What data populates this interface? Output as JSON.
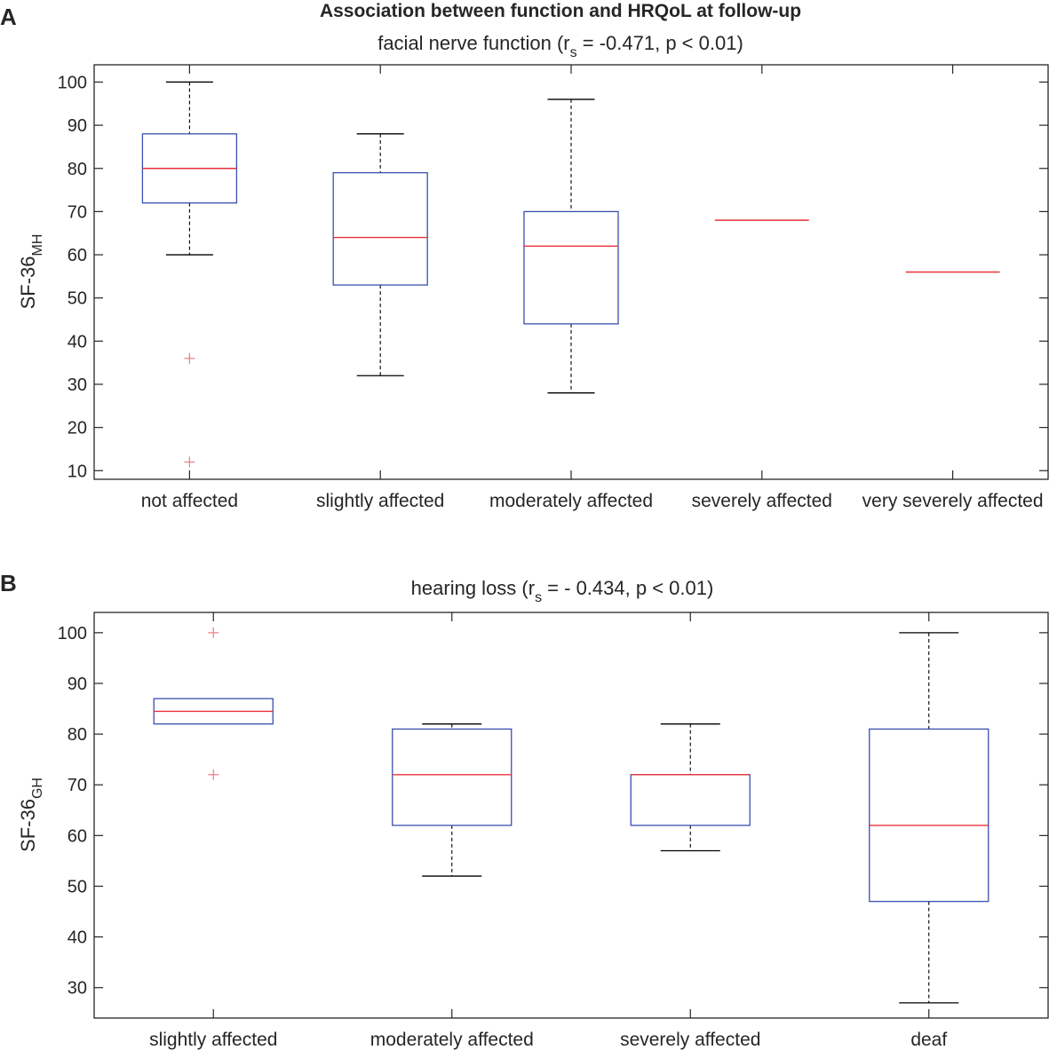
{
  "figure": {
    "title": "Association between function and HRQoL at follow-up",
    "colors": {
      "box": "#3a4fb0",
      "median": "#e8323c",
      "whisker": "#000000",
      "outlier": "#f07a82",
      "axis": "#262626"
    }
  },
  "chart_data": [
    {
      "type": "box",
      "panel_label": "A",
      "title_main": "facial nerve function (r",
      "title_sub": "s",
      "title_rest": " = -0.471, p < 0.01)",
      "ylabel_main": "SF-36",
      "ylabel_sub": "MH",
      "ylim": [
        8,
        104
      ],
      "yticks": [
        10,
        20,
        30,
        40,
        50,
        60,
        70,
        80,
        90,
        100
      ],
      "categories": [
        "not affected",
        "slightly affected",
        "moderately affected",
        "severely affected",
        "very severely affected"
      ],
      "boxes": [
        {
          "whisker_low": 60,
          "q1": 72,
          "median": 80,
          "q3": 88,
          "whisker_high": 100,
          "outliers": [
            36,
            12
          ]
        },
        {
          "whisker_low": 32,
          "q1": 53,
          "median": 64,
          "q3": 79,
          "whisker_high": 88,
          "outliers": []
        },
        {
          "whisker_low": 28,
          "q1": 44,
          "median": 62,
          "q3": 70,
          "whisker_high": 96,
          "outliers": []
        },
        {
          "whisker_low": 68,
          "q1": 68,
          "median": 68,
          "q3": 68,
          "whisker_high": 68,
          "outliers": []
        },
        {
          "whisker_low": 56,
          "q1": 56,
          "median": 56,
          "q3": 56,
          "whisker_high": 56,
          "outliers": []
        }
      ]
    },
    {
      "type": "box",
      "panel_label": "B",
      "title_main": "hearing loss (r",
      "title_sub": "s",
      "title_rest": " = - 0.434, p < 0.01)",
      "ylabel_main": "SF-36",
      "ylabel_sub": "GH",
      "ylim": [
        24,
        104
      ],
      "yticks": [
        30,
        40,
        50,
        60,
        70,
        80,
        90,
        100
      ],
      "categories": [
        "slightly affected",
        "moderately affected",
        "severely affected",
        "deaf"
      ],
      "boxes": [
        {
          "whisker_low": 82,
          "q1": 82,
          "median": 84.5,
          "q3": 87,
          "whisker_high": 87,
          "outliers": [
            100,
            72
          ]
        },
        {
          "whisker_low": 52,
          "q1": 62,
          "median": 72,
          "q3": 81,
          "whisker_high": 82,
          "outliers": []
        },
        {
          "whisker_low": 57,
          "q1": 62,
          "median": 72,
          "q3": 72,
          "whisker_high": 82,
          "outliers": []
        },
        {
          "whisker_low": 27,
          "q1": 47,
          "median": 62,
          "q3": 81,
          "whisker_high": 100,
          "outliers": []
        }
      ]
    }
  ]
}
